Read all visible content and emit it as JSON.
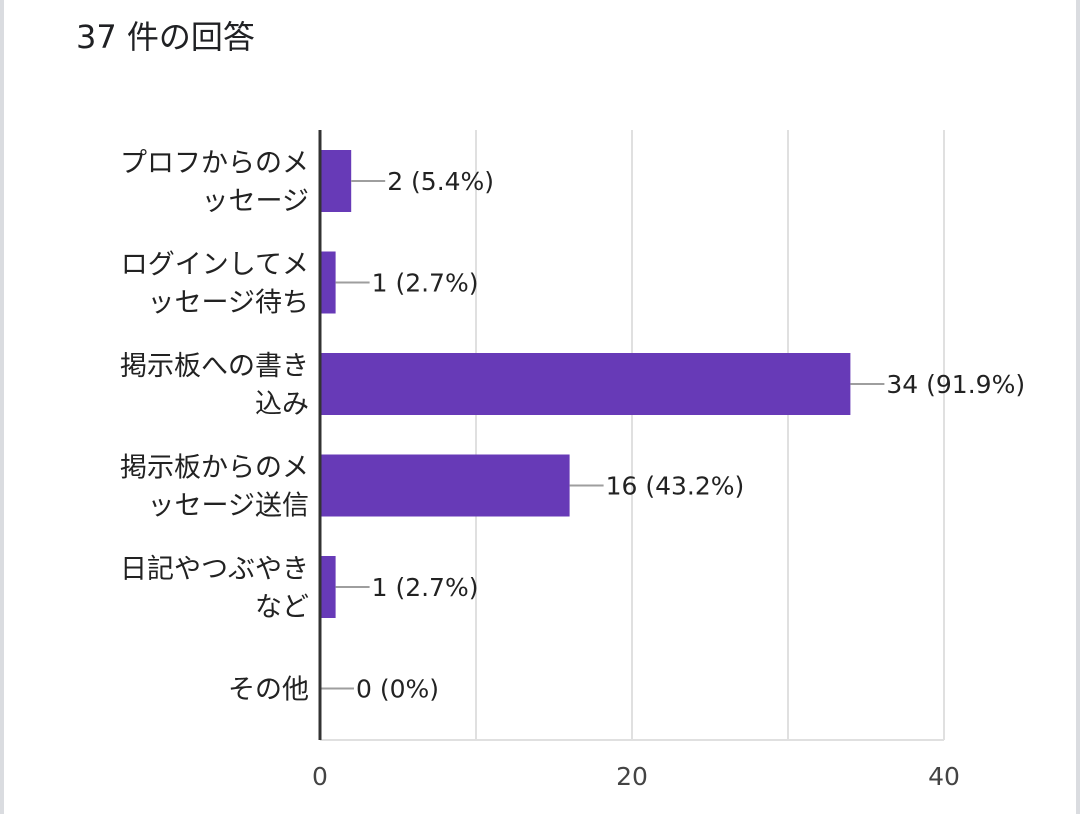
{
  "summary": {
    "response_count": "37 件の回答"
  },
  "chart_data": {
    "type": "bar",
    "orientation": "horizontal",
    "categories": [
      [
        "プロフからのメ",
        "ッセージ"
      ],
      [
        "ログインしてメ",
        "ッセージ待ち"
      ],
      [
        "掲示板への書き",
        "込み"
      ],
      [
        "掲示板からのメ",
        "ッセージ送信"
      ],
      [
        "日記やつぶやき",
        "など"
      ],
      [
        "その他"
      ]
    ],
    "values": [
      2,
      1,
      34,
      16,
      1,
      0
    ],
    "data_labels": [
      "2 (5.4%)",
      "1 (2.7%)",
      "34 (91.9%)",
      "16 (43.2%)",
      "1 (2.7%)",
      "0 (0%)"
    ],
    "xlim": [
      0,
      40
    ],
    "x_ticks": [
      0,
      20,
      40
    ],
    "x_tick_labels": [
      "0",
      "20",
      "40"
    ],
    "grid": true,
    "bar_color": "#673ab7",
    "grid_color": "#e0e0e0",
    "leader_color": "#9e9e9e"
  }
}
